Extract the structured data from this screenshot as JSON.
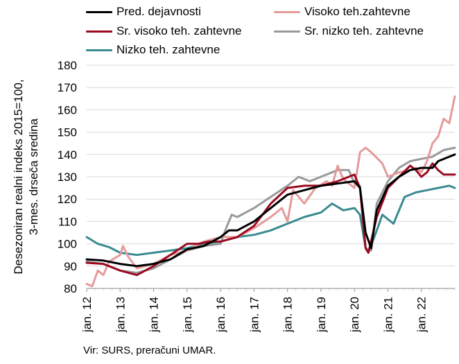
{
  "legend": {
    "items": [
      {
        "label": "Pred. dejavnosti",
        "color": "#000000"
      },
      {
        "label": "Visoko teh.zahtevne",
        "color": "#e59a9a"
      },
      {
        "label": "Sr. visoko teh. zahtevne",
        "color": "#9b0a20"
      },
      {
        "label": "Sr. nizko teh. zahtevne",
        "color": "#999999"
      },
      {
        "label": "Nizko teh. zahtevne",
        "color": "#3a8a8f"
      }
    ]
  },
  "source": "Vir: SURS, preračuni UMAR.",
  "chart_data": {
    "type": "line",
    "ylabel": "Desezoniran realni indeks 2015=100,\n3-mes. drseča sredina",
    "xlabel": "",
    "ylim": [
      80,
      180
    ],
    "yticks": [
      80,
      90,
      100,
      110,
      120,
      130,
      140,
      150,
      160,
      170,
      180
    ],
    "x_start": "jan. 12",
    "x_end": "jan. 22",
    "x_ticks": [
      "jan. 12",
      "jan. 13",
      "jan. 14",
      "jan. 15",
      "jan. 16",
      "jan. 17",
      "jan. 18",
      "jan. 19",
      "jan. 20",
      "jan. 21",
      "jan. 22"
    ],
    "grid": "horizontal",
    "legend_position": "top",
    "series": [
      {
        "name": "Pred. dejavnosti",
        "color": "#000000",
        "anchors": [
          [
            0,
            93
          ],
          [
            6,
            92.5
          ],
          [
            12,
            91
          ],
          [
            18,
            90
          ],
          [
            24,
            91
          ],
          [
            30,
            93
          ],
          [
            36,
            97.5
          ],
          [
            42,
            99
          ],
          [
            48,
            103
          ],
          [
            51,
            106
          ],
          [
            54,
            106
          ],
          [
            60,
            110
          ],
          [
            66,
            116
          ],
          [
            72,
            122
          ],
          [
            78,
            124
          ],
          [
            84,
            126
          ],
          [
            90,
            127
          ],
          [
            96,
            128
          ],
          [
            98,
            125
          ],
          [
            100,
            105
          ],
          [
            102,
            98
          ],
          [
            104,
            115
          ],
          [
            108,
            126
          ],
          [
            112,
            130
          ],
          [
            116,
            133
          ],
          [
            120,
            134
          ],
          [
            122,
            134
          ],
          [
            124,
            134
          ],
          [
            126,
            137
          ],
          [
            128,
            138
          ],
          [
            130,
            139
          ],
          [
            132,
            140
          ]
        ]
      },
      {
        "name": "Visoko teh.zahtevne",
        "color": "#e59a9a",
        "anchors": [
          [
            0,
            82
          ],
          [
            2,
            81
          ],
          [
            4,
            88
          ],
          [
            6,
            86
          ],
          [
            8,
            92
          ],
          [
            12,
            95
          ],
          [
            13,
            99
          ],
          [
            15,
            94
          ],
          [
            18,
            89
          ],
          [
            24,
            91
          ],
          [
            30,
            95
          ],
          [
            36,
            97
          ],
          [
            42,
            101
          ],
          [
            48,
            103
          ],
          [
            54,
            103
          ],
          [
            60,
            107
          ],
          [
            66,
            112
          ],
          [
            70,
            116
          ],
          [
            72,
            110
          ],
          [
            74,
            124
          ],
          [
            78,
            118
          ],
          [
            82,
            125
          ],
          [
            86,
            128
          ],
          [
            88,
            126
          ],
          [
            90,
            135
          ],
          [
            92,
            129
          ],
          [
            96,
            125
          ],
          [
            98,
            141
          ],
          [
            100,
            143
          ],
          [
            102,
            141
          ],
          [
            106,
            136
          ],
          [
            108,
            130
          ],
          [
            112,
            132
          ],
          [
            116,
            133
          ],
          [
            118,
            134
          ],
          [
            120,
            132
          ],
          [
            122,
            137
          ],
          [
            124,
            145
          ],
          [
            126,
            148
          ],
          [
            128,
            156
          ],
          [
            130,
            154
          ],
          [
            132,
            166
          ]
        ]
      },
      {
        "name": "Sr. visoko teh. zahtevne",
        "color": "#9b0a20",
        "anchors": [
          [
            0,
            91.5
          ],
          [
            6,
            91
          ],
          [
            12,
            88
          ],
          [
            18,
            86
          ],
          [
            24,
            90
          ],
          [
            30,
            95
          ],
          [
            36,
            100
          ],
          [
            40,
            100
          ],
          [
            44,
            101
          ],
          [
            48,
            101
          ],
          [
            54,
            103
          ],
          [
            60,
            108
          ],
          [
            66,
            118
          ],
          [
            72,
            125
          ],
          [
            78,
            126
          ],
          [
            84,
            126
          ],
          [
            90,
            128
          ],
          [
            96,
            131
          ],
          [
            98,
            125
          ],
          [
            100,
            98
          ],
          [
            101,
            96
          ],
          [
            104,
            112
          ],
          [
            108,
            125
          ],
          [
            112,
            130
          ],
          [
            116,
            135
          ],
          [
            118,
            133
          ],
          [
            120,
            130
          ],
          [
            122,
            132
          ],
          [
            124,
            136
          ],
          [
            126,
            133
          ],
          [
            128,
            131
          ],
          [
            132,
            131
          ]
        ]
      },
      {
        "name": "Sr. nizko teh. zahtevne",
        "color": "#999999",
        "anchors": [
          [
            0,
            92
          ],
          [
            6,
            91
          ],
          [
            12,
            88
          ],
          [
            18,
            87
          ],
          [
            24,
            89
          ],
          [
            30,
            93
          ],
          [
            36,
            97
          ],
          [
            42,
            99
          ],
          [
            48,
            100
          ],
          [
            50,
            107
          ],
          [
            52,
            113
          ],
          [
            54,
            112
          ],
          [
            60,
            116
          ],
          [
            66,
            121
          ],
          [
            72,
            126
          ],
          [
            76,
            130
          ],
          [
            80,
            128
          ],
          [
            84,
            130
          ],
          [
            90,
            133
          ],
          [
            94,
            133
          ],
          [
            96,
            127
          ],
          [
            98,
            126
          ],
          [
            100,
            98
          ],
          [
            102,
            97
          ],
          [
            104,
            118
          ],
          [
            108,
            128
          ],
          [
            112,
            134
          ],
          [
            116,
            137
          ],
          [
            120,
            138
          ],
          [
            124,
            139
          ],
          [
            128,
            142
          ],
          [
            132,
            143
          ]
        ]
      },
      {
        "name": "Nizko teh. zahtevne",
        "color": "#3a8a8f",
        "anchors": [
          [
            0,
            103
          ],
          [
            4,
            100
          ],
          [
            8,
            98.5
          ],
          [
            12,
            96
          ],
          [
            18,
            95
          ],
          [
            24,
            96
          ],
          [
            30,
            97
          ],
          [
            36,
            98
          ],
          [
            42,
            100
          ],
          [
            48,
            101
          ],
          [
            54,
            103
          ],
          [
            60,
            104
          ],
          [
            66,
            106
          ],
          [
            72,
            109
          ],
          [
            78,
            112
          ],
          [
            84,
            114
          ],
          [
            88,
            118
          ],
          [
            92,
            115
          ],
          [
            96,
            116
          ],
          [
            98,
            113
          ],
          [
            100,
            98
          ],
          [
            101,
            96
          ],
          [
            104,
            106
          ],
          [
            106,
            113
          ],
          [
            108,
            111
          ],
          [
            110,
            109
          ],
          [
            114,
            121
          ],
          [
            118,
            123
          ],
          [
            122,
            124
          ],
          [
            126,
            125
          ],
          [
            130,
            126
          ],
          [
            132,
            125
          ]
        ]
      }
    ]
  }
}
